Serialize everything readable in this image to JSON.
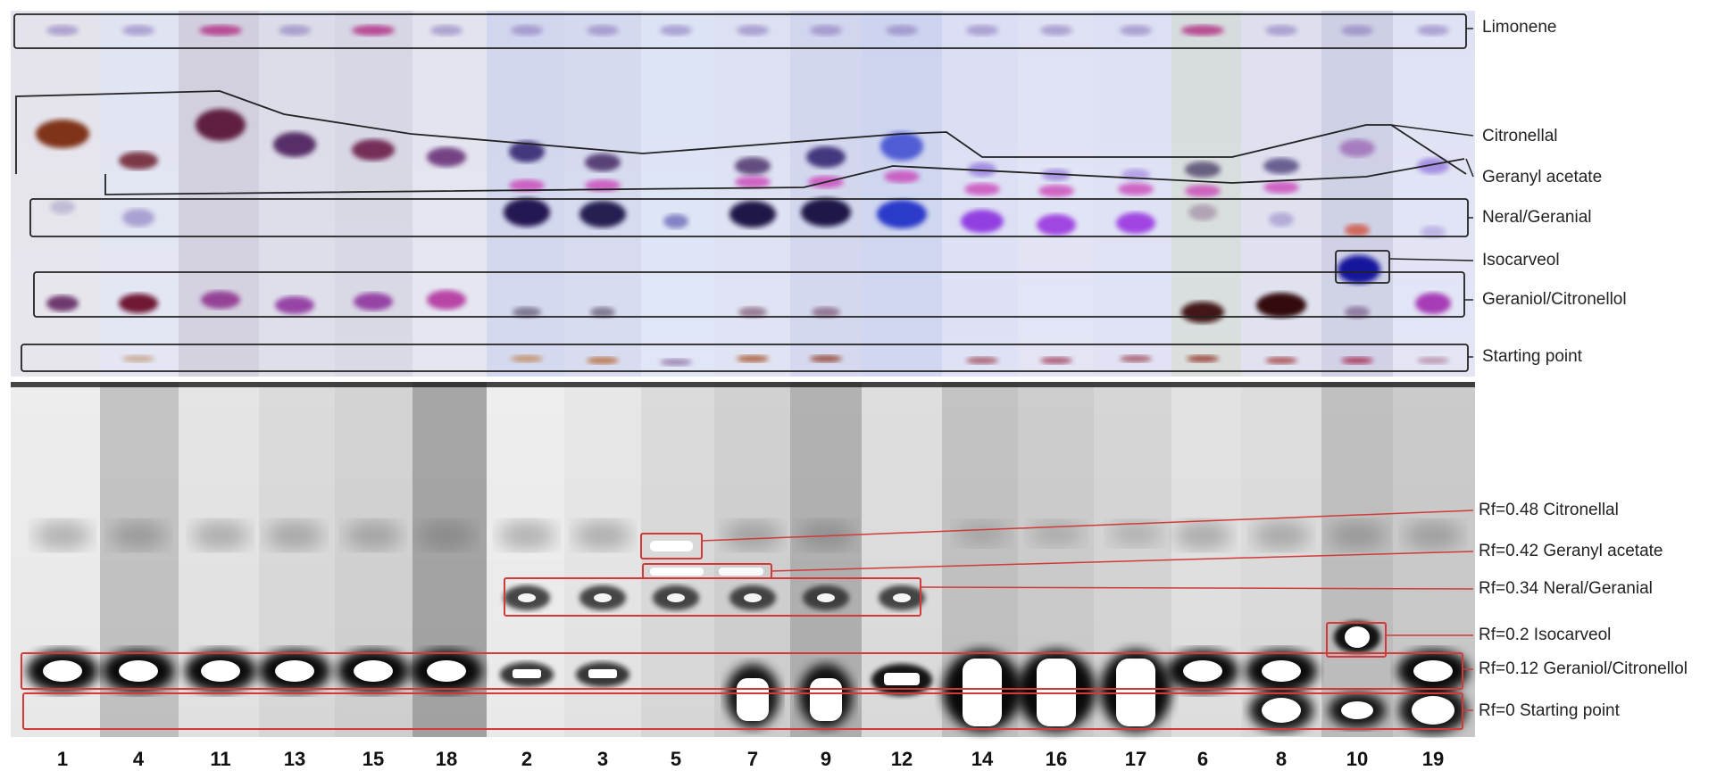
{
  "lanes": [
    "1",
    "4",
    "11",
    "13",
    "15",
    "18",
    "2",
    "3",
    "5",
    "7",
    "9",
    "12",
    "14",
    "16",
    "17",
    "6",
    "8",
    "10",
    "19"
  ],
  "top_labels": [
    "Limonene",
    "Citronellal",
    "Geranyl acetate",
    "Neral/Geranial",
    "Isocarveol",
    "Geraniol/Citronellol",
    "Starting point"
  ],
  "bottom_labels": [
    "Rf=0.48 Citronellal",
    "Rf=0.42 Geranyl acetate",
    "Rf=0.34 Neral/Geranial",
    "Rf=0.2 Isocarveol",
    "Rf=0.12 Geraniol/Citronellol",
    "Rf=0 Starting point"
  ],
  "colors": {
    "box_top": "#222222",
    "box_bottom": "#d23a3a",
    "plate": "#dfe2f4"
  }
}
